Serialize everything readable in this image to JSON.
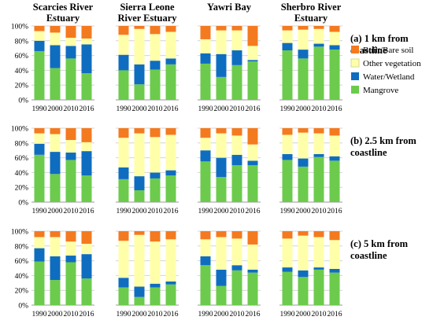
{
  "chart_data": {
    "type": "bar",
    "stacked": true,
    "percent": true,
    "categories": [
      "1990",
      "2000",
      "2010",
      "2016"
    ],
    "y_ticks": [
      "0%",
      "20%",
      "40%",
      "60%",
      "80%",
      "100%"
    ],
    "ylim": [
      0,
      100
    ],
    "grid": true,
    "legend": {
      "placement": "right",
      "entries": [
        {
          "name": "Built/Bare soil",
          "color": "#f47a20"
        },
        {
          "name": "Other vegetation",
          "color": "#ffffaa"
        },
        {
          "name": "Water/Wetland",
          "color": "#0f6dc0"
        },
        {
          "name": "Mangrove",
          "color": "#6ccb4c"
        }
      ]
    },
    "columns": [
      {
        "title": [
          "Scarcies River",
          "Estuary"
        ]
      },
      {
        "title": [
          "Sierra Leone",
          "River Estuary"
        ]
      },
      {
        "title": [
          "Yawri Bay"
        ]
      },
      {
        "title": [
          "Sherbro River",
          "Estuary"
        ]
      }
    ],
    "rows": [
      {
        "label": [
          "(a) 1 km from",
          "coastline"
        ],
        "panels": [
          {
            "series": {
              "Mangrove": [
                66,
                43,
                56,
                36
              ],
              "Water/Wetland": [
                14,
                31,
                17,
                39
              ],
              "Other vegetation": [
                13,
                17,
                11,
                8
              ],
              "Built/Bare soil": [
                7,
                9,
                16,
                17
              ]
            }
          },
          {
            "series": {
              "Mangrove": [
                40,
                21,
                41,
                48
              ],
              "Water/Wetland": [
                21,
                27,
                12,
                8
              ],
              "Other vegetation": [
                27,
                48,
                36,
                36
              ],
              "Built/Bare soil": [
                12,
                4,
                11,
                8
              ]
            }
          },
          {
            "series": {
              "Mangrove": [
                49,
                31,
                47,
                52
              ],
              "Water/Wetland": [
                14,
                31,
                20,
                2
              ],
              "Other vegetation": [
                19,
                32,
                27,
                19
              ],
              "Built/Bare soil": [
                18,
                6,
                6,
                27
              ]
            }
          },
          {
            "series": {
              "Mangrove": [
                67,
                56,
                72,
                68
              ],
              "Water/Wetland": [
                10,
                12,
                4,
                6
              ],
              "Other vegetation": [
                17,
                27,
                20,
                18
              ],
              "Built/Bare soil": [
                6,
                5,
                4,
                8
              ]
            }
          }
        ]
      },
      {
        "label": [
          "(b) 2.5 km from",
          "coastline"
        ],
        "panels": [
          {
            "series": {
              "Mangrove": [
                64,
                38,
                57,
                36
              ],
              "Water/Wetland": [
                15,
                30,
                10,
                33
              ],
              "Other vegetation": [
                14,
                24,
                17,
                12
              ],
              "Built/Bare soil": [
                7,
                8,
                16,
                19
              ]
            }
          },
          {
            "series": {
              "Mangrove": [
                31,
                16,
                32,
                36
              ],
              "Water/Wetland": [
                16,
                19,
                8,
                7
              ],
              "Other vegetation": [
                40,
                58,
                48,
                48
              ],
              "Built/Bare soil": [
                13,
                7,
                12,
                9
              ]
            }
          },
          {
            "series": {
              "Mangrove": [
                55,
                34,
                50,
                50
              ],
              "Water/Wetland": [
                15,
                26,
                14,
                6
              ],
              "Other vegetation": [
                17,
                33,
                26,
                22
              ],
              "Built/Bare soil": [
                13,
                7,
                10,
                22
              ]
            }
          },
          {
            "series": {
              "Mangrove": [
                57,
                48,
                61,
                56
              ],
              "Water/Wetland": [
                8,
                11,
                4,
                6
              ],
              "Other vegetation": [
                26,
                35,
                28,
                28
              ],
              "Built/Bare soil": [
                9,
                6,
                7,
                10
              ]
            }
          }
        ]
      },
      {
        "label": [
          "(c) 5 km from",
          "coastline"
        ],
        "panels": [
          {
            "series": {
              "Mangrove": [
                59,
                34,
                58,
                36
              ],
              "Water/Wetland": [
                18,
                32,
                9,
                33
              ],
              "Other vegetation": [
                15,
                26,
                19,
                14
              ],
              "Built/Bare soil": [
                8,
                8,
                14,
                17
              ]
            }
          },
          {
            "series": {
              "Mangrove": [
                24,
                11,
                24,
                28
              ],
              "Water/Wetland": [
                13,
                14,
                5,
                4
              ],
              "Other vegetation": [
                50,
                70,
                57,
                57
              ],
              "Built/Bare soil": [
                13,
                5,
                14,
                11
              ]
            }
          },
          {
            "series": {
              "Mangrove": [
                54,
                26,
                47,
                44
              ],
              "Water/Wetland": [
                12,
                22,
                7,
                4
              ],
              "Other vegetation": [
                23,
                44,
                36,
                34
              ],
              "Built/Bare soil": [
                11,
                8,
                10,
                18
              ]
            }
          },
          {
            "series": {
              "Mangrove": [
                45,
                38,
                48,
                44
              ],
              "Water/Wetland": [
                6,
                9,
                3,
                5
              ],
              "Other vegetation": [
                39,
                47,
                41,
                39
              ],
              "Built/Bare soil": [
                10,
                6,
                8,
                12
              ]
            }
          }
        ]
      }
    ]
  }
}
